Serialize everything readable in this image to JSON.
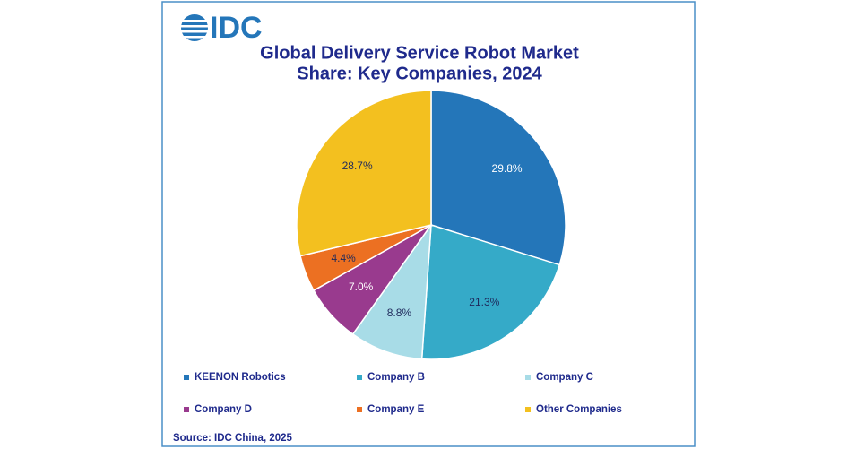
{
  "chart_data": {
    "type": "pie",
    "logo": "IDC",
    "title": [
      "Global Delivery Service Robot Market",
      "Share: Key Companies, 2024"
    ],
    "categories": [
      "KEENON Robotics",
      "Company B",
      "Company C",
      "Company D",
      "Company E",
      "Other Companies"
    ],
    "values": [
      29.8,
      21.3,
      8.8,
      7.0,
      4.4,
      28.7
    ],
    "value_labels": [
      "29.8%",
      "21.3%",
      "8.8%",
      "7.0%",
      "4.4%",
      "28.7%"
    ],
    "colors": [
      "#2476b9",
      "#35aac8",
      "#a8dce7",
      "#993a8e",
      "#ec7022",
      "#f3c01f"
    ],
    "source": "Source: IDC China, 2025"
  }
}
